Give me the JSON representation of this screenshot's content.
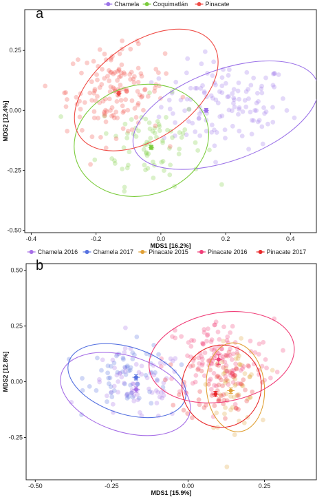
{
  "chart_data": [
    {
      "type": "scatter",
      "panel_label": "a",
      "xlabel": "MDS1 [16.2%]",
      "ylabel": "MDS2 [12.4%]",
      "xlim": [
        -0.42,
        0.48
      ],
      "ylim": [
        -0.51,
        0.42
      ],
      "xticks": [
        -0.4,
        -0.2,
        0.0,
        0.2,
        0.4
      ],
      "xtick_labels": [
        "-0.4",
        "-0.2",
        "0.0",
        "0.2",
        "0.4"
      ],
      "yticks": [
        -0.5,
        -0.25,
        0.0,
        0.25
      ],
      "ytick_labels": [
        "-0.50",
        "-0.25",
        "0.00",
        "0.25"
      ],
      "legend_position": "top",
      "grid": false,
      "series": [
        {
          "name": "Chamela",
          "color": "#9b72e8",
          "centroid": [
            0.14,
            0.0
          ],
          "centroid_err": [
            0.008,
            0.008
          ],
          "ellipse": {
            "cx": 0.2,
            "cy": -0.02,
            "rx": 0.3,
            "ry": 0.19,
            "angle": 20
          },
          "cloud": {
            "cx": 0.2,
            "cy": 0.02,
            "sx": 0.1,
            "sy": 0.09,
            "n": 130
          }
        },
        {
          "name": "Coquimatlán",
          "color": "#7bcc3c",
          "centroid": [
            -0.03,
            -0.155
          ],
          "centroid_err": [
            0.008,
            0.008
          ],
          "ellipse": {
            "cx": -0.06,
            "cy": -0.125,
            "rx": 0.21,
            "ry": 0.23,
            "angle": 15
          },
          "cloud": {
            "cx": -0.03,
            "cy": -0.13,
            "sx": 0.08,
            "sy": 0.09,
            "n": 80
          }
        },
        {
          "name": "Pinacate",
          "color": "#ef4b45",
          "centroid": [
            -0.13,
            0.07
          ],
          "centroid_err": [
            0.008,
            0.01
          ],
          "ellipse": {
            "cx": -0.045,
            "cy": 0.085,
            "rx": 0.25,
            "ry": 0.2,
            "angle": 35
          },
          "cloud": {
            "cx": -0.14,
            "cy": 0.08,
            "sx": 0.075,
            "sy": 0.09,
            "n": 150
          }
        }
      ]
    },
    {
      "type": "scatter",
      "panel_label": "b",
      "xlabel": "MDS1 [15.9%]",
      "ylabel": "MDS2 [12.8%]",
      "xlim": [
        -0.53,
        0.42
      ],
      "ylim": [
        -0.44,
        0.53
      ],
      "xticks": [
        -0.5,
        -0.25,
        0.0,
        0.25
      ],
      "xtick_labels": [
        "-0.50",
        "-0.25",
        "0.00",
        "0.25"
      ],
      "yticks": [
        -0.25,
        0.0,
        0.25,
        0.5
      ],
      "ytick_labels": [
        "-0.25",
        "0.00",
        "0.25",
        "0.50"
      ],
      "legend_position": "top",
      "grid": false,
      "series": [
        {
          "name": "Chamela 2016",
          "color": "#a66ee6",
          "centroid": [
            -0.17,
            -0.035
          ],
          "centroid_err": [
            0.012,
            0.012
          ],
          "ellipse": {
            "cx": -0.205,
            "cy": -0.055,
            "rx": 0.22,
            "ry": 0.17,
            "angle": -18
          },
          "cloud": {
            "cx": -0.17,
            "cy": -0.02,
            "sx": 0.08,
            "sy": 0.08,
            "n": 70
          }
        },
        {
          "name": "Chamela 2017",
          "color": "#5571e0",
          "centroid": [
            -0.17,
            0.02
          ],
          "centroid_err": [
            0.012,
            0.012
          ],
          "ellipse": {
            "cx": -0.2,
            "cy": 0.005,
            "rx": 0.2,
            "ry": 0.15,
            "angle": -18
          },
          "cloud": {
            "cx": -0.19,
            "cy": 0.03,
            "sx": 0.07,
            "sy": 0.07,
            "n": 60
          }
        },
        {
          "name": "Pinacate 2015",
          "color": "#e0a035",
          "centroid": [
            0.14,
            -0.04
          ],
          "centroid_err": [
            0.012,
            0.012
          ],
          "ellipse": {
            "cx": 0.155,
            "cy": -0.025,
            "rx": 0.095,
            "ry": 0.2,
            "angle": 5
          },
          "cloud": {
            "cx": 0.15,
            "cy": -0.02,
            "sx": 0.04,
            "sy": 0.09,
            "n": 55
          }
        },
        {
          "name": "Pinacate 2016",
          "color": "#f03e78",
          "centroid": [
            0.1,
            0.1
          ],
          "centroid_err": [
            0.012,
            0.022
          ],
          "ellipse": {
            "cx": 0.11,
            "cy": 0.11,
            "rx": 0.24,
            "ry": 0.2,
            "angle": 10
          },
          "cloud": {
            "cx": 0.1,
            "cy": 0.1,
            "sx": 0.09,
            "sy": 0.09,
            "n": 130
          }
        },
        {
          "name": "Pinacate 2017",
          "color": "#e8282a",
          "centroid": [
            0.09,
            -0.055
          ],
          "centroid_err": [
            0.012,
            0.012
          ],
          "ellipse": {
            "cx": 0.11,
            "cy": -0.02,
            "rx": 0.13,
            "ry": 0.185,
            "angle": -8
          },
          "cloud": {
            "cx": 0.1,
            "cy": -0.01,
            "sx": 0.06,
            "sy": 0.08,
            "n": 60
          }
        }
      ]
    }
  ]
}
